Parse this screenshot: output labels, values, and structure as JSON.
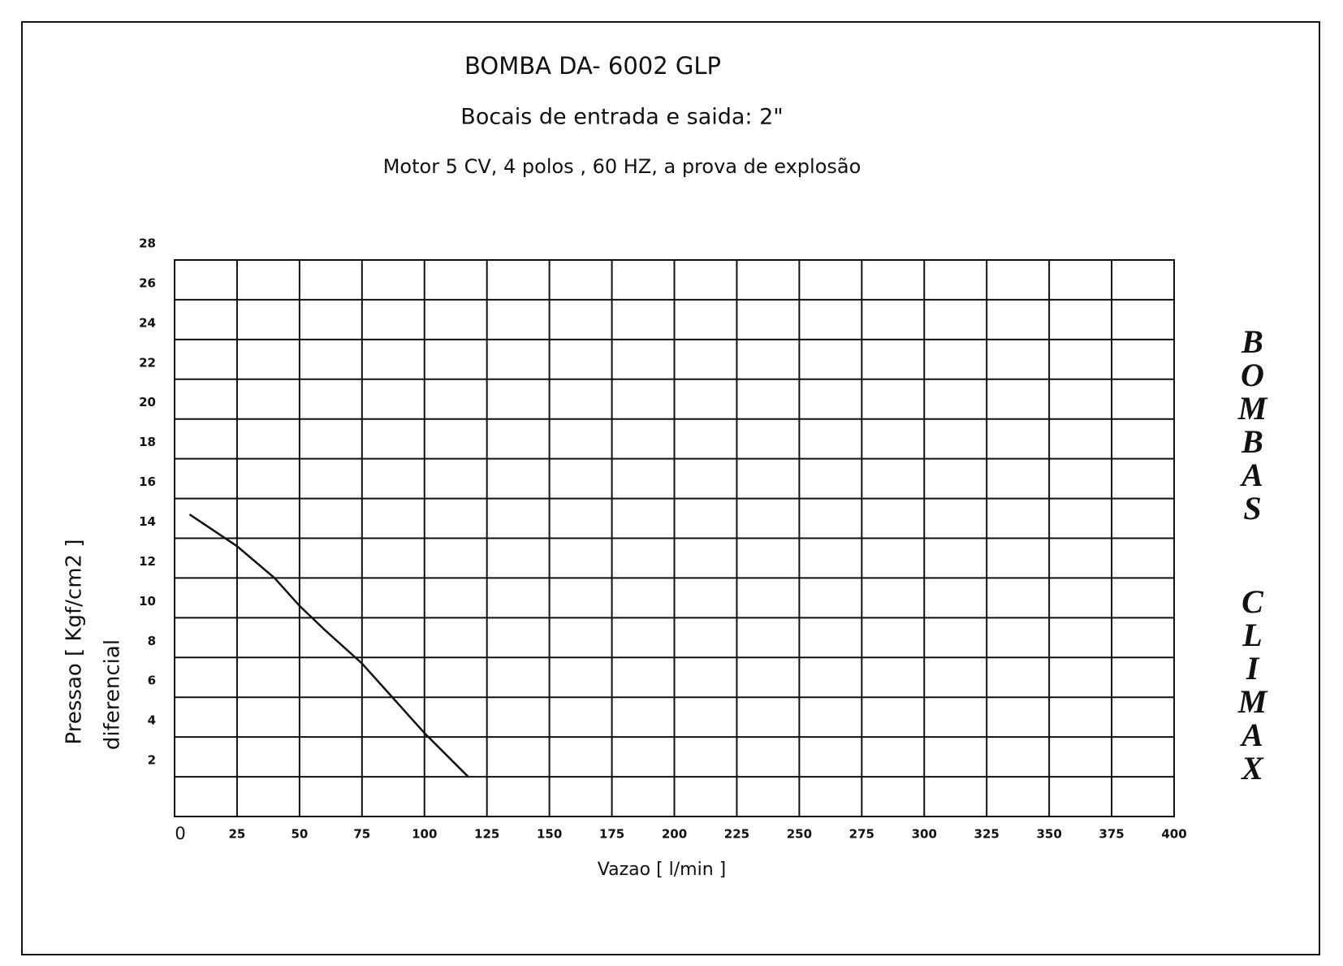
{
  "chart_data": {
    "type": "line",
    "title": "BOMBA DA- 6002 GLP",
    "subtitle": "Bocais de entrada e saida: 2\"",
    "description": "Motor  5 CV, 4 polos ,  60 HZ, a prova de explosão",
    "x_label": "Vazao [ l/min ]",
    "y_label": [
      "Pressao [ Kgf/cm2 ]",
      "diferencial"
    ],
    "brand": [
      "BOMBAS",
      "CLIMAX"
    ],
    "xlim": [
      0,
      400
    ],
    "xticks": [
      0,
      25,
      50,
      75,
      100,
      125,
      150,
      175,
      200,
      225,
      250,
      275,
      300,
      325,
      350,
      375,
      400
    ],
    "ylim": [
      0,
      28
    ],
    "yticks": [
      2,
      4,
      6,
      8,
      10,
      12,
      14,
      16,
      18,
      20,
      22,
      24,
      26,
      28
    ],
    "grid": true,
    "series": [
      {
        "color": "#111111",
        "x": [
          6,
          25,
          40,
          50,
          60,
          75,
          90,
          100,
          117.5
        ],
        "values": [
          15.2,
          13.6,
          12,
          10.6,
          9.4,
          7.7,
          5.6,
          4.2,
          2
        ]
      }
    ]
  }
}
